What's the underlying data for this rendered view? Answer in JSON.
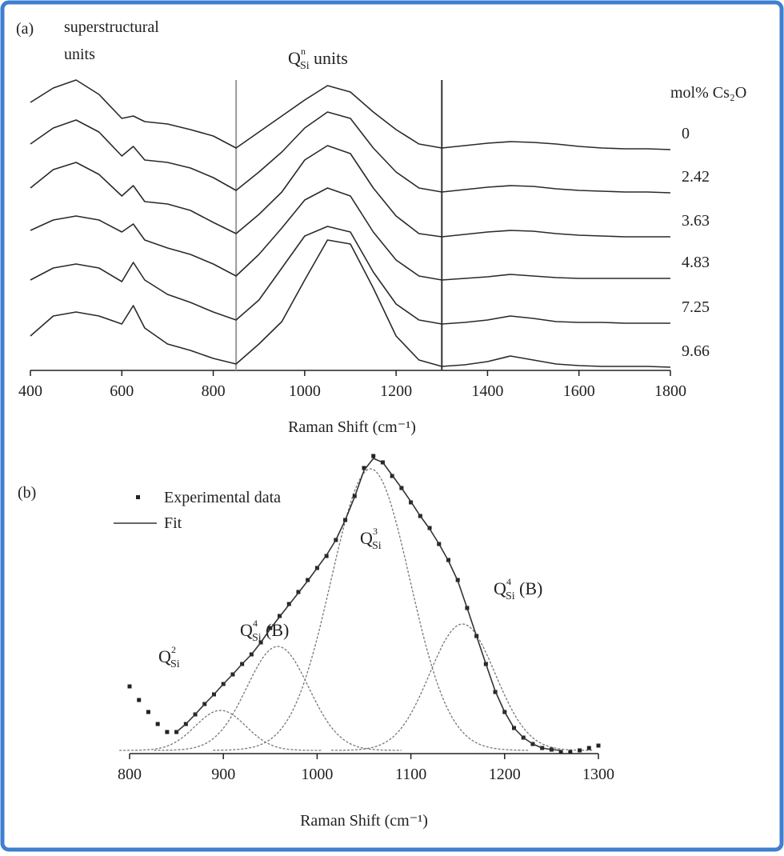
{
  "chart_data": [
    {
      "type": "line",
      "panel_label": "(a)",
      "annotations": [
        {
          "lines": [
            "superstructural",
            "units"
          ]
        },
        {
          "base": "Q",
          "sup": "n",
          "sub": "Si",
          "suffix": "units"
        }
      ],
      "legend_title": "mol% Cs₂O",
      "legend": "right",
      "xlabel": "Raman Shift (cm⁻¹)",
      "x": [
        400,
        450,
        500,
        550,
        600,
        625,
        650,
        700,
        750,
        800,
        850,
        900,
        950,
        1000,
        1050,
        1100,
        1150,
        1200,
        1250,
        1300,
        1350,
        1400,
        1450,
        1500,
        1550,
        1600,
        1650,
        1700,
        1750,
        1800
      ],
      "series": [
        {
          "name": "0",
          "color": "#2a2a2a",
          "values": [
            335,
            353,
            363,
            345,
            315,
            318,
            311,
            308,
            301,
            293,
            278,
            298,
            318,
            338,
            356,
            348,
            323,
            301,
            283,
            278,
            281,
            284,
            286,
            285,
            283,
            280,
            278,
            277,
            277,
            276
          ]
        },
        {
          "name": "2.42",
          "color": "#2a2a2a",
          "values": [
            283,
            303,
            313,
            298,
            268,
            280,
            263,
            260,
            253,
            241,
            225,
            248,
            273,
            303,
            323,
            315,
            278,
            248,
            228,
            223,
            226,
            229,
            231,
            230,
            227,
            225,
            224,
            223,
            223,
            222
          ]
        },
        {
          "name": "3.63",
          "color": "#2a2a2a",
          "values": [
            228,
            251,
            260,
            245,
            218,
            231,
            211,
            208,
            200,
            185,
            171,
            195,
            223,
            263,
            281,
            271,
            228,
            193,
            171,
            167,
            170,
            173,
            175,
            174,
            171,
            169,
            168,
            167,
            167,
            167
          ]
        },
        {
          "name": "4.83",
          "color": "#2a2a2a",
          "values": [
            175,
            188,
            193,
            188,
            173,
            183,
            163,
            153,
            145,
            133,
            118,
            145,
            178,
            213,
            228,
            218,
            173,
            138,
            118,
            113,
            115,
            117,
            120,
            118,
            116,
            115,
            115,
            115,
            115,
            115
          ]
        },
        {
          "name": "7.25",
          "color": "#2a2a2a",
          "values": [
            113,
            128,
            133,
            128,
            111,
            135,
            113,
            95,
            85,
            73,
            63,
            88,
            128,
            168,
            180,
            173,
            123,
            83,
            63,
            58,
            60,
            63,
            68,
            65,
            61,
            60,
            60,
            59,
            59,
            59
          ]
        },
        {
          "name": "9.66",
          "color": "#2a2a2a",
          "values": [
            43,
            68,
            73,
            68,
            58,
            81,
            53,
            33,
            25,
            15,
            8,
            33,
            61,
            113,
            163,
            158,
            103,
            43,
            13,
            5,
            7,
            11,
            18,
            13,
            8,
            6,
            5,
            5,
            5,
            4
          ]
        }
      ],
      "vlines": [
        {
          "value": 850,
          "color": "#999999"
        },
        {
          "value": 1300,
          "color": "#333333"
        }
      ],
      "xlim": [
        400,
        1800
      ],
      "xticks": [
        400,
        600,
        800,
        1000,
        1200,
        1400,
        1600,
        1800
      ],
      "ylim": [
        0,
        378
      ]
    },
    {
      "type": "scatter",
      "panel_label": "(b)",
      "annotations": [
        {
          "base": "Q",
          "sup": "2",
          "sub": "Si"
        },
        {
          "base": "Q",
          "sup": "4",
          "sub": "Si",
          "suffix": "(B)"
        },
        {
          "base": "Q",
          "sup": "3",
          "sub": "Si"
        },
        {
          "base": "Q",
          "sup": "4",
          "sub": "Si",
          "suffix": "(B)"
        }
      ],
      "xlabel": "Raman Shift (cm⁻¹)",
      "legend": "upper left",
      "series": [
        {
          "name": "Experimental data",
          "color": "#222222",
          "type": "scatter",
          "x": [
            800,
            810,
            820,
            830,
            840,
            850,
            860,
            870,
            880,
            890,
            900,
            910,
            920,
            930,
            940,
            950,
            960,
            970,
            980,
            990,
            1000,
            1010,
            1020,
            1030,
            1040,
            1050,
            1060,
            1070,
            1080,
            1090,
            1100,
            1110,
            1120,
            1130,
            1140,
            1150,
            1160,
            1170,
            1180,
            1190,
            1200,
            1210,
            1220,
            1230,
            1240,
            1250,
            1260,
            1270,
            1280,
            1290,
            1300
          ],
          "values": [
            80,
            63,
            48,
            33,
            23,
            23,
            33,
            45,
            58,
            70,
            83,
            95,
            108,
            120,
            135,
            153,
            168,
            183,
            198,
            213,
            228,
            243,
            263,
            288,
            318,
            353,
            368,
            360,
            343,
            328,
            310,
            293,
            278,
            258,
            238,
            213,
            178,
            143,
            108,
            73,
            48,
            28,
            16,
            8,
            3,
            1,
            -2,
            -2,
            0,
            3,
            6
          ]
        },
        {
          "name": "Fit",
          "color": "#333333",
          "type": "line",
          "x": [
            850,
            860,
            870,
            880,
            890,
            900,
            910,
            920,
            930,
            940,
            950,
            960,
            970,
            980,
            990,
            1000,
            1010,
            1020,
            1030,
            1040,
            1050,
            1060,
            1070,
            1080,
            1090,
            1100,
            1110,
            1120,
            1130,
            1140,
            1150,
            1160,
            1170,
            1180,
            1190,
            1200,
            1210,
            1220,
            1230,
            1240,
            1250,
            1260
          ],
          "values": [
            23,
            33,
            45,
            58,
            70,
            83,
            95,
            108,
            120,
            135,
            152,
            167,
            182,
            197,
            212,
            228,
            244,
            263,
            288,
            317,
            350,
            365,
            360,
            344,
            328,
            311,
            293,
            277,
            258,
            237,
            212,
            178,
            143,
            108,
            74,
            48,
            28,
            16,
            8,
            3,
            1,
            0
          ]
        }
      ],
      "components": [
        {
          "center": 897,
          "height": 50,
          "sigma": 27,
          "color": "#777777"
        },
        {
          "center": 958,
          "height": 130,
          "sigma": 33,
          "color": "#777777"
        },
        {
          "center": 1057,
          "height": 352,
          "sigma": 42,
          "color": "#777777"
        },
        {
          "center": 1155,
          "height": 158,
          "sigma": 35,
          "color": "#777777"
        }
      ],
      "xlim": [
        800,
        1300
      ],
      "xticks": [
        800,
        900,
        1000,
        1100,
        1200,
        1300
      ],
      "ylim": [
        0,
        400
      ]
    }
  ]
}
